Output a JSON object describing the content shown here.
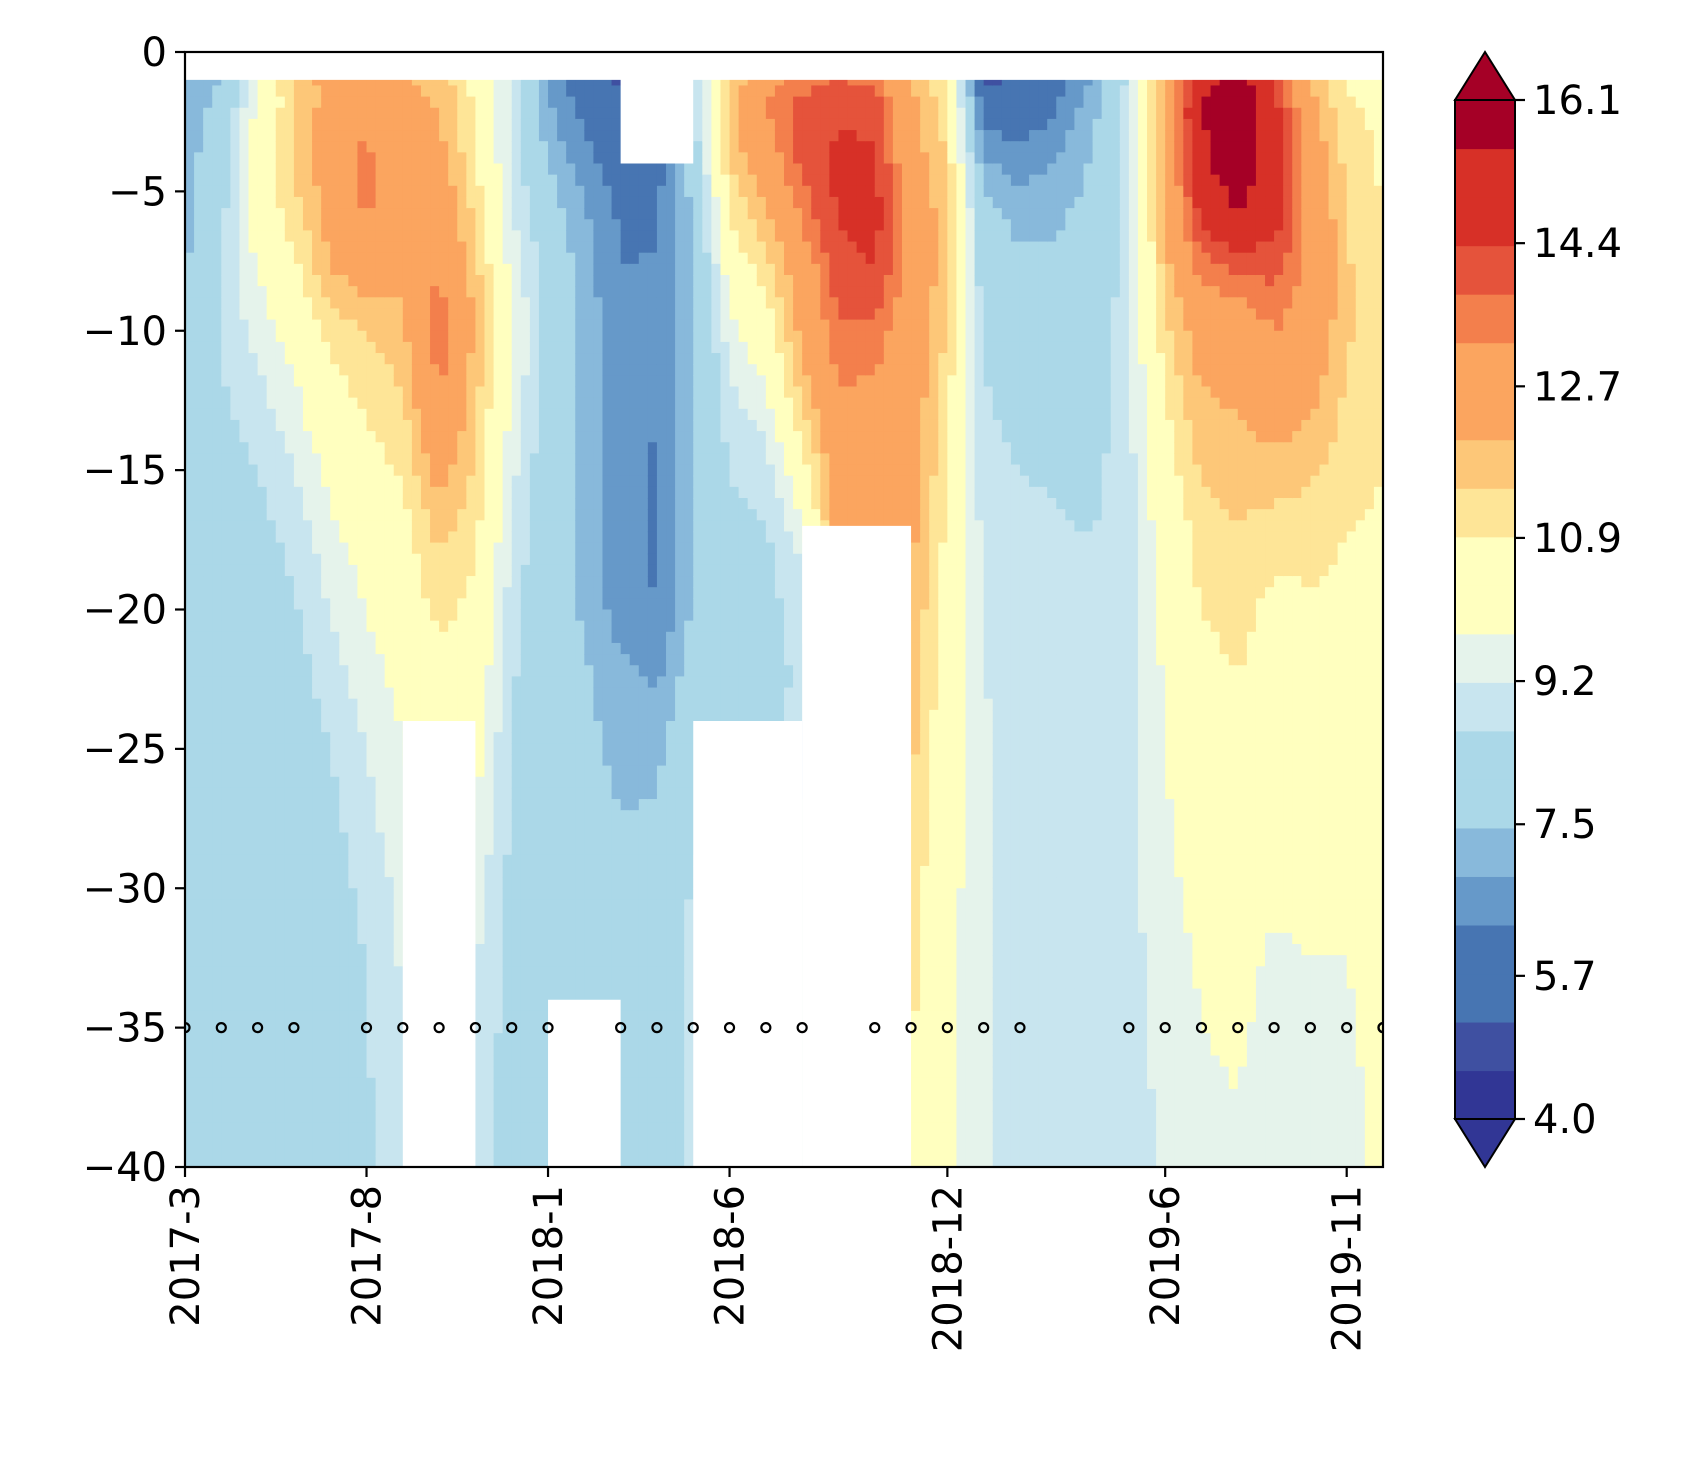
{
  "chart_data": {
    "type": "heatmap",
    "subtype": "filled-contour",
    "title": "",
    "xlabel": "",
    "ylabel": "",
    "ylim": [
      -40,
      0
    ],
    "yticks": [
      0,
      -5,
      -10,
      -15,
      -20,
      -25,
      -30,
      -35,
      -40
    ],
    "ytick_labels": [
      "0",
      "−5",
      "−10",
      "−15",
      "−20",
      "−25",
      "−30",
      "−35",
      "−40"
    ],
    "x_months": [
      "2017-3",
      "2017-4",
      "2017-5",
      "2017-6",
      "2017-7",
      "2017-8",
      "2017-9",
      "2017-10",
      "2017-11",
      "2017-12",
      "2018-1",
      "2018-2",
      "2018-3",
      "2018-4",
      "2018-5",
      "2018-6",
      "2018-7",
      "2018-8",
      "2018-9",
      "2018-10",
      "2018-11",
      "2018-12",
      "2019-1",
      "2019-2",
      "2019-3",
      "2019-4",
      "2019-5",
      "2019-6",
      "2019-7",
      "2019-8",
      "2019-9",
      "2019-10",
      "2019-11",
      "2019-12"
    ],
    "xticks": [
      "2017-3",
      "2017-8",
      "2018-1",
      "2018-6",
      "2018-12",
      "2019-6",
      "2019-11"
    ],
    "colorbar": {
      "levels": [
        4.0,
        4.6,
        5.1,
        5.7,
        6.3,
        6.9,
        7.5,
        8.0,
        8.6,
        9.2,
        9.8,
        10.4,
        10.9,
        11.5,
        12.1,
        12.7,
        13.3,
        13.8,
        14.4,
        15.0,
        15.6,
        16.1
      ],
      "tick_values": [
        4.0,
        5.7,
        7.5,
        9.2,
        10.9,
        12.7,
        14.4,
        16.1
      ],
      "tick_labels": [
        "4.0",
        "5.7",
        "7.5",
        "9.2",
        "10.9",
        "12.7",
        "14.4",
        "16.1"
      ],
      "extend": "both",
      "colors": [
        "#313695",
        "#3f50a1",
        "#4775b2",
        "#6699c9",
        "#88b9db",
        "#abd8e8",
        "#c8e5ef",
        "#e5f3eb",
        "#ffffbf",
        "#fee597",
        "#fdc778",
        "#fba55f",
        "#f37f4c",
        "#e5533b",
        "#d73027",
        "#a50026"
      ]
    },
    "grid_depths": [
      -1,
      -2,
      -4,
      -6,
      -8,
      -10,
      -12.5,
      -15,
      -17.5,
      -20,
      -22.5,
      -25,
      -27.5,
      -30,
      -32.5,
      -35,
      -37.5,
      -40
    ],
    "temperature_profiles": [
      {
        "month": "2017-3",
        "values": [
          6.8,
          7.0,
          7.2,
          7.3,
          7.4,
          7.5,
          7.7,
          7.9,
          8.0,
          8.0,
          8.0,
          8.0,
          8.0,
          8.0,
          8.0,
          8.0,
          8.0,
          8.1
        ]
      },
      {
        "month": "2017-4",
        "values": [
          7.6,
          7.8,
          8.1,
          8.4,
          8.6,
          8.7,
          8.5,
          8.3,
          8.1,
          8.0,
          7.9,
          7.9,
          7.9,
          7.8,
          7.8,
          7.8,
          7.8,
          7.8
        ]
      },
      {
        "month": "2017-5",
        "values": [
          9.8,
          10.0,
          10.5,
          10.3,
          9.8,
          9.4,
          9.0,
          8.6,
          8.3,
          8.1,
          8.0,
          7.9,
          7.9,
          7.9,
          7.8,
          7.8,
          7.8,
          7.8
        ]
      },
      {
        "month": "2017-6",
        "values": [
          11.6,
          11.4,
          11.6,
          11.2,
          10.6,
          10.2,
          9.6,
          9.2,
          8.8,
          8.5,
          8.3,
          8.1,
          8.0,
          7.9,
          7.9,
          7.9,
          7.9,
          7.9
        ]
      },
      {
        "month": "2017-7",
        "values": [
          12.4,
          12.5,
          12.6,
          12.4,
          12.0,
          11.1,
          10.6,
          10.0,
          9.6,
          9.2,
          8.9,
          8.6,
          8.4,
          8.3,
          8.2,
          8.1,
          8.1,
          8.1
        ]
      },
      {
        "month": "2017-8",
        "values": [
          12.7,
          13.0,
          13.6,
          13.4,
          12.5,
          11.5,
          11.0,
          10.6,
          10.2,
          9.8,
          9.5,
          9.2,
          9.0,
          8.8,
          8.6,
          8.6,
          8.5,
          8.5
        ]
      },
      {
        "month": "2017-9",
        "values": [
          12.2,
          12.3,
          12.4,
          12.4,
          12.2,
          12.0,
          11.4,
          11.0,
          10.6,
          10.4,
          10.0,
          9.8,
          9.6,
          9.4,
          9.3,
          9.2,
          9.0,
          9.0
        ]
      },
      {
        "month": "2017-10",
        "values": [
          11.9,
          12.1,
          12.4,
          12.9,
          13.4,
          13.7,
          13.4,
          12.4,
          11.6,
          11.1,
          10.5,
          10.2,
          9.9,
          9.6,
          9.4,
          9.2,
          9.1,
          9.0
        ]
      },
      {
        "month": "2017-11",
        "values": [
          10.7,
          10.8,
          11.0,
          11.4,
          11.8,
          12.0,
          11.7,
          11.4,
          11.0,
          10.7,
          10.4,
          10.1,
          9.8,
          9.5,
          9.3,
          9.1,
          9.0,
          8.9
        ]
      },
      {
        "month": "2017-12",
        "values": [
          9.0,
          9.0,
          9.1,
          9.3,
          9.6,
          9.9,
          9.7,
          9.4,
          9.1,
          8.9,
          8.7,
          8.6,
          8.5,
          8.4,
          8.3,
          8.3,
          8.3,
          8.3
        ]
      },
      {
        "month": "2018-1",
        "values": [
          6.8,
          7.0,
          7.5,
          7.9,
          8.3,
          8.4,
          8.2,
          8.0,
          7.9,
          7.9,
          7.8,
          7.8,
          7.8,
          7.8,
          7.8,
          7.8,
          7.8,
          7.8
        ]
      },
      {
        "month": "2018-2",
        "values": [
          5.6,
          6.0,
          6.6,
          7.0,
          7.2,
          7.3,
          7.3,
          7.3,
          7.4,
          7.4,
          7.6,
          7.7,
          7.8,
          7.8,
          7.8,
          7.9,
          7.9,
          7.9
        ]
      },
      {
        "month": "2018-3",
        "values": [
          5.0,
          5.3,
          5.8,
          6.2,
          6.3,
          6.4,
          6.5,
          6.5,
          6.5,
          6.6,
          7.1,
          7.3,
          7.5,
          7.6,
          7.7,
          7.8,
          7.8,
          7.8
        ]
      },
      {
        "month": "2018-4",
        "values": [
          6.3,
          6.1,
          6.0,
          6.2,
          6.4,
          6.6,
          6.4,
          6.2,
          6.2,
          6.3,
          6.8,
          7.3,
          7.6,
          7.8,
          8.0,
          8.1,
          8.2,
          8.2
        ]
      },
      {
        "month": "2018-5",
        "values": [
          8.6,
          8.4,
          8.0,
          7.5,
          7.4,
          7.3,
          7.3,
          7.4,
          7.5,
          7.6,
          7.9,
          8.3,
          8.5,
          8.7,
          8.8,
          8.8,
          8.8,
          8.8
        ]
      },
      {
        "month": "2018-6",
        "values": [
          11.4,
          11.8,
          11.5,
          10.9,
          10.2,
          9.6,
          9.0,
          8.6,
          8.4,
          8.2,
          8.3,
          8.5,
          8.6,
          8.7,
          8.8,
          8.8,
          8.8,
          8.8
        ]
      },
      {
        "month": "2018-7",
        "values": [
          13.0,
          13.3,
          12.8,
          11.9,
          11.1,
          10.4,
          9.6,
          8.9,
          8.5,
          8.3,
          8.4,
          8.5,
          8.6,
          8.7,
          8.8,
          8.8,
          8.8,
          8.8
        ]
      },
      {
        "month": "2018-8",
        "values": [
          13.5,
          14.1,
          14.0,
          13.4,
          12.7,
          12.4,
          11.6,
          10.5,
          9.4,
          8.9,
          8.7,
          8.8,
          8.9,
          9.0,
          9.0,
          9.0,
          9.0,
          9.0
        ]
      },
      {
        "month": "2018-9",
        "values": [
          13.9,
          14.3,
          14.6,
          14.4,
          14.1,
          13.7,
          13.2,
          12.8,
          12.4,
          12.1,
          11.8,
          11.6,
          11.4,
          11.2,
          11.0,
          10.8,
          10.7,
          10.6
        ]
      },
      {
        "month": "2018-10",
        "values": [
          13.6,
          14.2,
          14.5,
          14.7,
          14.4,
          13.6,
          13.1,
          12.9,
          12.6,
          12.3,
          12.0,
          11.8,
          11.6,
          11.4,
          11.2,
          11.0,
          10.9,
          10.8
        ]
      },
      {
        "month": "2018-11",
        "values": [
          12.0,
          12.3,
          12.6,
          12.8,
          12.9,
          12.8,
          12.7,
          12.5,
          12.3,
          12.1,
          11.9,
          11.7,
          11.5,
          11.3,
          11.1,
          11.0,
          10.9,
          10.8
        ]
      },
      {
        "month": "2018-12",
        "values": [
          11.0,
          11.2,
          11.5,
          11.8,
          11.7,
          11.4,
          11.1,
          10.9,
          10.7,
          10.5,
          10.4,
          10.3,
          10.2,
          10.1,
          10.0,
          10.0,
          9.9,
          9.9
        ]
      },
      {
        "month": "2019-1",
        "values": [
          5.0,
          5.8,
          7.0,
          7.8,
          8.1,
          8.5,
          8.7,
          8.9,
          9.0,
          9.1,
          9.2,
          9.3,
          9.3,
          9.3,
          9.3,
          9.3,
          9.3,
          9.3
        ]
      },
      {
        "month": "2019-2",
        "values": [
          5.2,
          5.7,
          6.6,
          7.3,
          7.7,
          8.0,
          8.3,
          8.6,
          8.8,
          8.9,
          9.0,
          9.0,
          9.0,
          9.0,
          9.0,
          9.0,
          9.0,
          9.0
        ]
      },
      {
        "month": "2019-3",
        "values": [
          6.0,
          6.3,
          6.9,
          7.4,
          7.7,
          8.0,
          8.3,
          8.5,
          8.7,
          8.8,
          8.9,
          8.9,
          8.9,
          8.9,
          8.9,
          8.9,
          8.9,
          8.9
        ]
      },
      {
        "month": "2019-4",
        "values": [
          7.0,
          7.2,
          7.6,
          7.8,
          7.9,
          8.0,
          8.2,
          8.4,
          8.6,
          8.7,
          8.8,
          8.8,
          8.9,
          8.9,
          8.9,
          8.9,
          8.9,
          8.9
        ]
      },
      {
        "month": "2019-5",
        "values": [
          8.8,
          8.9,
          9.0,
          9.0,
          9.0,
          9.0,
          9.0,
          9.0,
          9.0,
          9.0,
          9.0,
          9.0,
          9.0,
          9.0,
          9.0,
          9.0,
          9.0,
          9.0
        ]
      },
      {
        "month": "2019-6",
        "values": [
          12.3,
          12.5,
          12.4,
          12.2,
          11.8,
          11.3,
          10.9,
          10.5,
          10.2,
          10.0,
          9.9,
          9.8,
          9.7,
          9.6,
          9.5,
          9.4,
          9.3,
          9.3
        ]
      },
      {
        "month": "2019-7",
        "values": [
          15.0,
          15.6,
          15.2,
          14.5,
          13.4,
          12.6,
          12.0,
          11.6,
          11.2,
          10.9,
          10.7,
          10.5,
          10.3,
          10.1,
          9.9,
          9.8,
          9.7,
          9.6
        ]
      },
      {
        "month": "2019-8",
        "values": [
          16.3,
          16.7,
          16.5,
          15.4,
          13.7,
          12.7,
          12.2,
          11.8,
          11.4,
          11.1,
          10.9,
          10.7,
          10.4,
          10.2,
          10.0,
          9.9,
          9.8,
          9.7
        ]
      },
      {
        "month": "2019-9",
        "values": [
          14.2,
          14.8,
          15.0,
          14.7,
          13.9,
          13.3,
          12.6,
          11.9,
          11.1,
          10.7,
          10.5,
          10.3,
          10.1,
          9.9,
          9.7,
          9.6,
          9.5,
          9.5
        ]
      },
      {
        "month": "2019-10",
        "values": [
          12.0,
          12.4,
          12.8,
          13.1,
          13.1,
          12.9,
          12.3,
          11.6,
          11.1,
          10.8,
          10.6,
          10.4,
          10.2,
          10.0,
          9.8,
          9.7,
          9.6,
          9.5
        ]
      },
      {
        "month": "2019-11",
        "values": [
          10.8,
          11.0,
          11.3,
          11.5,
          11.6,
          11.6,
          11.4,
          11.1,
          10.9,
          10.7,
          10.5,
          10.3,
          10.1,
          9.9,
          9.8,
          9.7,
          9.6,
          9.5
        ]
      },
      {
        "month": "2019-12",
        "values": [
          10.6,
          10.7,
          10.8,
          10.9,
          11.0,
          11.0,
          11.0,
          10.9,
          10.8,
          10.7,
          10.6,
          10.5,
          10.4,
          10.3,
          10.2,
          10.1,
          10.0,
          10.0
        ]
      }
    ],
    "no_data_regions": [
      {
        "from": "2017-9",
        "to": "2017-11",
        "below_depth": -24
      },
      {
        "from": "2018-1",
        "to": "2018-3",
        "below_depth": -34
      },
      {
        "from": "2018-3",
        "to": "2018-5",
        "at_surface_above": -4
      },
      {
        "from": "2018-5",
        "to": "2018-8",
        "below_depth": -24
      },
      {
        "from": "2018-8",
        "to": "2018-11",
        "below_depth": -17
      }
    ],
    "sample_points": {
      "depth": -35,
      "dates": [
        "2017-3",
        "2017-4",
        "2017-5",
        "2017-6",
        "2017-8",
        "2017-9",
        "2017-10",
        "2017-11",
        "2017-12",
        "2018-1",
        "2018-3",
        "2018-4",
        "2018-5",
        "2018-6",
        "2018-7",
        "2018-8",
        "2018-10",
        "2018-11",
        "2018-12",
        "2019-1",
        "2019-2",
        "2019-5",
        "2019-6",
        "2019-7",
        "2019-8",
        "2019-9",
        "2019-10",
        "2019-11",
        "2019-12",
        "2019-12"
      ]
    }
  }
}
